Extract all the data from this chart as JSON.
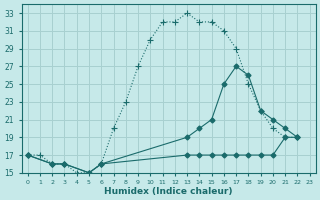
{
  "xlabel": "Humidex (Indice chaleur)",
  "bg_color": "#c6e9e9",
  "grid_color": "#a8d0d0",
  "line_color": "#1a6b6b",
  "xlim": [
    -0.5,
    23.5
  ],
  "ylim": [
    15,
    34
  ],
  "xticks": [
    0,
    1,
    2,
    3,
    4,
    5,
    6,
    7,
    8,
    9,
    10,
    11,
    12,
    13,
    14,
    15,
    16,
    17,
    18,
    19,
    20,
    21,
    22,
    23
  ],
  "yticks": [
    15,
    17,
    19,
    21,
    23,
    25,
    27,
    29,
    31,
    33
  ],
  "line1_x": [
    0,
    1,
    2,
    3,
    4,
    5,
    6,
    7,
    8,
    9,
    10,
    11,
    12,
    13,
    14,
    15,
    16,
    17,
    18,
    19,
    20,
    21,
    22
  ],
  "line1_y": [
    17,
    17,
    16,
    16,
    15,
    15,
    16,
    20,
    23,
    27,
    30,
    32,
    32,
    33,
    32,
    32,
    31,
    29,
    25,
    22,
    20,
    19,
    19
  ],
  "line2_x": [
    0,
    2,
    3,
    5,
    6,
    13,
    14,
    15,
    16,
    17,
    18,
    19,
    20,
    21,
    22
  ],
  "line2_y": [
    17,
    16,
    16,
    15,
    16,
    19,
    20,
    21,
    25,
    27,
    26,
    22,
    21,
    20,
    19
  ],
  "line3_x": [
    0,
    2,
    3,
    5,
    6,
    13,
    14,
    15,
    16,
    17,
    18,
    19,
    20,
    21,
    22
  ],
  "line3_y": [
    17,
    16,
    16,
    15,
    16,
    17,
    17,
    17,
    17,
    17,
    17,
    17,
    17,
    19,
    19
  ]
}
